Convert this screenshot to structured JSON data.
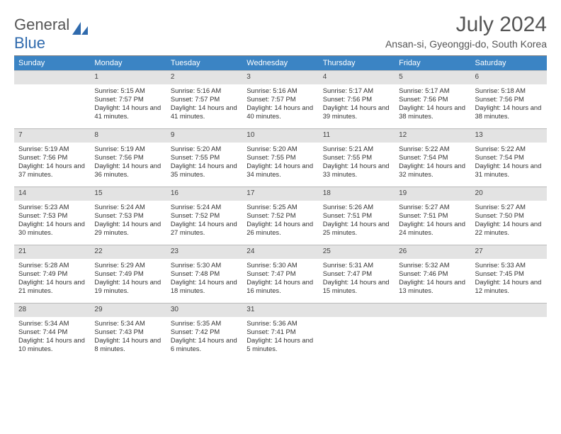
{
  "logo": {
    "text1": "General",
    "text2": "Blue"
  },
  "title": "July 2024",
  "subtitle": "Ansan-si, Gyeonggi-do, South Korea",
  "colors": {
    "header_bg": "#3b84c4",
    "header_fg": "#ffffff",
    "numrow_bg": "#e3e3e3",
    "rule": "#888888",
    "logo_blue": "#2f6aad"
  },
  "weekdays": [
    "Sunday",
    "Monday",
    "Tuesday",
    "Wednesday",
    "Thursday",
    "Friday",
    "Saturday"
  ],
  "start_weekday": 1,
  "days": [
    {
      "n": 1,
      "sr": "5:15 AM",
      "ss": "7:57 PM",
      "dl": "14 hours and 41 minutes."
    },
    {
      "n": 2,
      "sr": "5:16 AM",
      "ss": "7:57 PM",
      "dl": "14 hours and 41 minutes."
    },
    {
      "n": 3,
      "sr": "5:16 AM",
      "ss": "7:57 PM",
      "dl": "14 hours and 40 minutes."
    },
    {
      "n": 4,
      "sr": "5:17 AM",
      "ss": "7:56 PM",
      "dl": "14 hours and 39 minutes."
    },
    {
      "n": 5,
      "sr": "5:17 AM",
      "ss": "7:56 PM",
      "dl": "14 hours and 38 minutes."
    },
    {
      "n": 6,
      "sr": "5:18 AM",
      "ss": "7:56 PM",
      "dl": "14 hours and 38 minutes."
    },
    {
      "n": 7,
      "sr": "5:19 AM",
      "ss": "7:56 PM",
      "dl": "14 hours and 37 minutes."
    },
    {
      "n": 8,
      "sr": "5:19 AM",
      "ss": "7:56 PM",
      "dl": "14 hours and 36 minutes."
    },
    {
      "n": 9,
      "sr": "5:20 AM",
      "ss": "7:55 PM",
      "dl": "14 hours and 35 minutes."
    },
    {
      "n": 10,
      "sr": "5:20 AM",
      "ss": "7:55 PM",
      "dl": "14 hours and 34 minutes."
    },
    {
      "n": 11,
      "sr": "5:21 AM",
      "ss": "7:55 PM",
      "dl": "14 hours and 33 minutes."
    },
    {
      "n": 12,
      "sr": "5:22 AM",
      "ss": "7:54 PM",
      "dl": "14 hours and 32 minutes."
    },
    {
      "n": 13,
      "sr": "5:22 AM",
      "ss": "7:54 PM",
      "dl": "14 hours and 31 minutes."
    },
    {
      "n": 14,
      "sr": "5:23 AM",
      "ss": "7:53 PM",
      "dl": "14 hours and 30 minutes."
    },
    {
      "n": 15,
      "sr": "5:24 AM",
      "ss": "7:53 PM",
      "dl": "14 hours and 29 minutes."
    },
    {
      "n": 16,
      "sr": "5:24 AM",
      "ss": "7:52 PM",
      "dl": "14 hours and 27 minutes."
    },
    {
      "n": 17,
      "sr": "5:25 AM",
      "ss": "7:52 PM",
      "dl": "14 hours and 26 minutes."
    },
    {
      "n": 18,
      "sr": "5:26 AM",
      "ss": "7:51 PM",
      "dl": "14 hours and 25 minutes."
    },
    {
      "n": 19,
      "sr": "5:27 AM",
      "ss": "7:51 PM",
      "dl": "14 hours and 24 minutes."
    },
    {
      "n": 20,
      "sr": "5:27 AM",
      "ss": "7:50 PM",
      "dl": "14 hours and 22 minutes."
    },
    {
      "n": 21,
      "sr": "5:28 AM",
      "ss": "7:49 PM",
      "dl": "14 hours and 21 minutes."
    },
    {
      "n": 22,
      "sr": "5:29 AM",
      "ss": "7:49 PM",
      "dl": "14 hours and 19 minutes."
    },
    {
      "n": 23,
      "sr": "5:30 AM",
      "ss": "7:48 PM",
      "dl": "14 hours and 18 minutes."
    },
    {
      "n": 24,
      "sr": "5:30 AM",
      "ss": "7:47 PM",
      "dl": "14 hours and 16 minutes."
    },
    {
      "n": 25,
      "sr": "5:31 AM",
      "ss": "7:47 PM",
      "dl": "14 hours and 15 minutes."
    },
    {
      "n": 26,
      "sr": "5:32 AM",
      "ss": "7:46 PM",
      "dl": "14 hours and 13 minutes."
    },
    {
      "n": 27,
      "sr": "5:33 AM",
      "ss": "7:45 PM",
      "dl": "14 hours and 12 minutes."
    },
    {
      "n": 28,
      "sr": "5:34 AM",
      "ss": "7:44 PM",
      "dl": "14 hours and 10 minutes."
    },
    {
      "n": 29,
      "sr": "5:34 AM",
      "ss": "7:43 PM",
      "dl": "14 hours and 8 minutes."
    },
    {
      "n": 30,
      "sr": "5:35 AM",
      "ss": "7:42 PM",
      "dl": "14 hours and 6 minutes."
    },
    {
      "n": 31,
      "sr": "5:36 AM",
      "ss": "7:41 PM",
      "dl": "14 hours and 5 minutes."
    }
  ],
  "labels": {
    "sunrise": "Sunrise: ",
    "sunset": "Sunset: ",
    "daylight": "Daylight: "
  }
}
